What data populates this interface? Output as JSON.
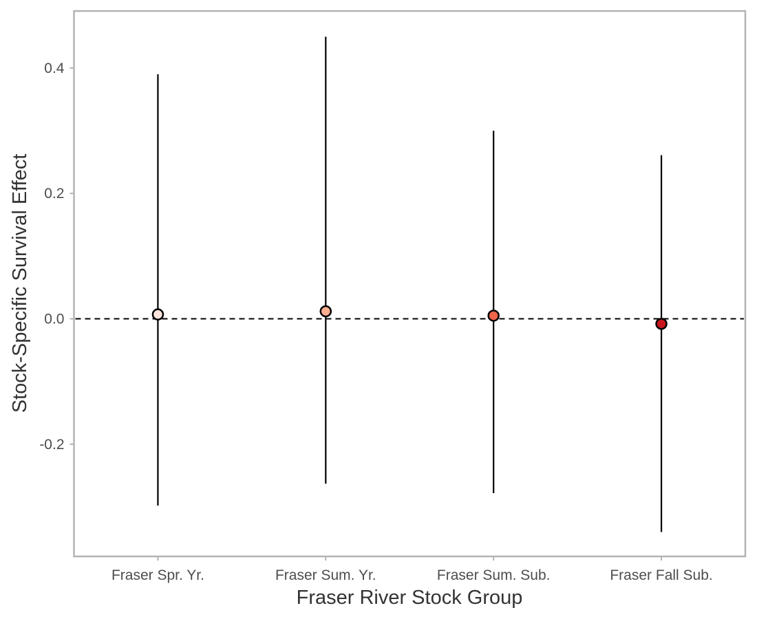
{
  "chart_data": {
    "type": "scatter",
    "xlabel": "Fraser River Stock Group",
    "ylabel": "Stock-Specific Survival Effect",
    "categories": [
      "Fraser Spr. Yr.",
      "Fraser Sum. Yr.",
      "Fraser Sum. Sub.",
      "Fraser Fall Sub."
    ],
    "points": [
      {
        "category": "Fraser Spr. Yr.",
        "estimate": 0.007,
        "lower": -0.298,
        "upper": 0.39,
        "color": "#fde4dc"
      },
      {
        "category": "Fraser Sum. Yr.",
        "estimate": 0.012,
        "lower": -0.263,
        "upper": 0.45,
        "color": "#fcae91"
      },
      {
        "category": "Fraser Sum. Sub.",
        "estimate": 0.005,
        "lower": -0.278,
        "upper": 0.3,
        "color": "#f0644a"
      },
      {
        "category": "Fraser Fall Sub.",
        "estimate": -0.008,
        "lower": -0.34,
        "upper": 0.261,
        "color": "#c8171c"
      }
    ],
    "yticks": [
      -0.2,
      0.0,
      0.2,
      0.4
    ],
    "ytick_labels": [
      "-0.2",
      "0.0",
      "0.2",
      "0.4"
    ],
    "ylim": [
      -0.379,
      0.491
    ],
    "reference_line": {
      "y": 0,
      "style": "dashed"
    },
    "grid": false,
    "legend": "none",
    "panel_border_color": "#b3b3b3",
    "interval_color": "#000000"
  }
}
